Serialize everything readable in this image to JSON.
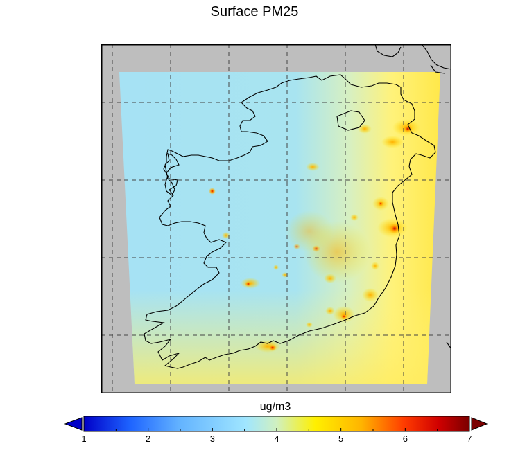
{
  "title": "Surface PM25",
  "colorbar": {
    "unit": "ug/m3",
    "ticks": [
      "1",
      "2",
      "3",
      "4",
      "5",
      "6",
      "7"
    ],
    "min": 1,
    "max": 7,
    "extend": "both",
    "colors": [
      "#0000c8",
      "#1e64ff",
      "#64b4ff",
      "#a0e6ff",
      "#fff000",
      "#ffb400",
      "#ff3c00",
      "#b40000",
      "#7a0000"
    ]
  },
  "map": {
    "background": "#bebebe",
    "grid_style": "dashed",
    "land_color": "#a8e2f2",
    "high_color": "#ffe600"
  }
}
